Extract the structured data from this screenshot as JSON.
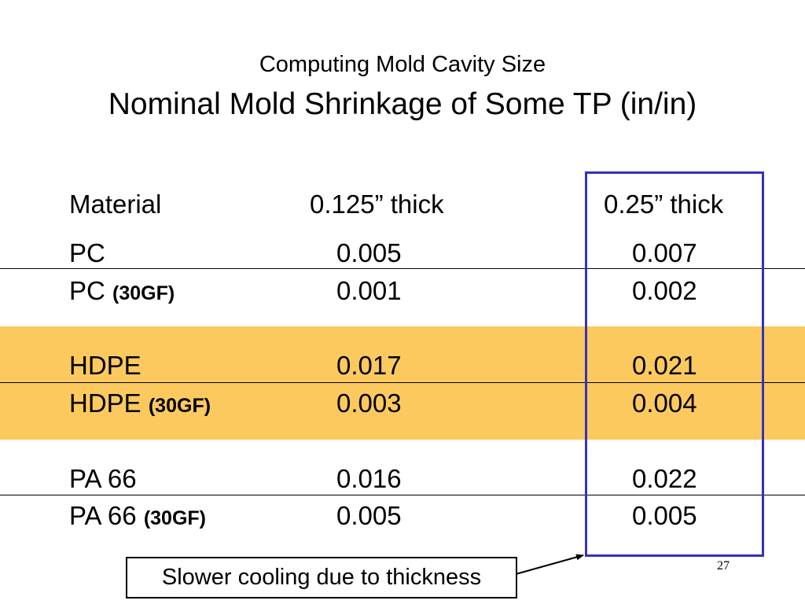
{
  "title": {
    "line1": "Computing Mold Cavity Size",
    "line2": "Nominal Mold Shrinkage of Some TP (in/in)"
  },
  "table": {
    "headers": [
      "Material",
      "0.125” thick",
      "0.25” thick"
    ],
    "rows": [
      {
        "material": "PC",
        "qualifier": "",
        "thin": "0.005",
        "thick": "0.007"
      },
      {
        "material": "PC",
        "qualifier": "(30GF)",
        "thin": "0.001",
        "thick": "0.002"
      },
      {
        "material": "HDPE",
        "qualifier": "",
        "thin": "0.017",
        "thick": "0.021"
      },
      {
        "material": "HDPE",
        "qualifier": "(30GF)",
        "thin": "0.003",
        "thick": "0.004"
      },
      {
        "material": "PA 66",
        "qualifier": "",
        "thin": "0.016",
        "thick": "0.022"
      },
      {
        "material": "PA 66",
        "qualifier": "(30GF)",
        "thin": "0.005",
        "thick": "0.005"
      }
    ]
  },
  "callout": "Slower cooling due to thickness",
  "page_number": "27",
  "colors": {
    "band": "#fcc95f",
    "highlight_border": "#3333bb"
  }
}
